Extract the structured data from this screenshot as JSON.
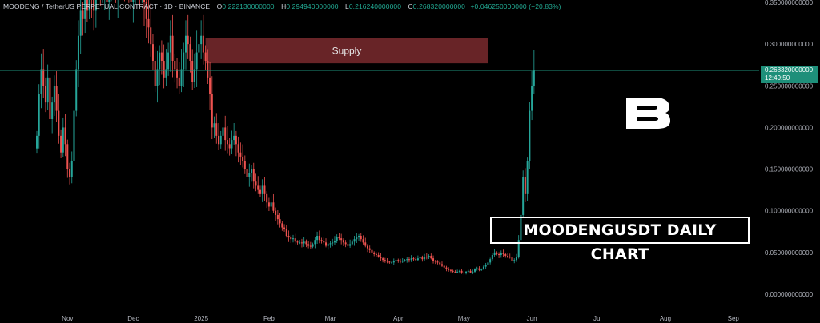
{
  "header": {
    "symbol_line": "MOODENG / TetherUS PERPETUAL CONTRACT · 1D · BINANCE",
    "open_label": "O",
    "open_value": "0.222130000000",
    "high_label": "H",
    "high_value": "0.294940000000",
    "low_label": "L",
    "low_value": "0.216240000000",
    "close_label": "C",
    "close_value": "0.268320000000",
    "change": "+0.046250000000 (+20.83%)"
  },
  "price_tag": {
    "price": "0.268320000000",
    "countdown": "12:49:50"
  },
  "title_box": "MOODENGUSDT DAILY CHART",
  "logo_icon": "b-logo-icon",
  "colors": {
    "up": "#26a69a",
    "down": "#ef5350",
    "supply_zone": "#7a2a2e",
    "last_price_line": "#1e8f7a"
  },
  "chart_data": {
    "type": "candlestick",
    "supply_zone": {
      "label": "Supply",
      "from": "2025-01-03",
      "to": "2025-05-12",
      "low": 0.277,
      "high": 0.307
    },
    "last_price": 0.26832,
    "ylim": [
      0,
      0.35
    ],
    "y_ticks": [
      "0.000000000000",
      "0.050000000000",
      "0.100000000000",
      "0.150000000000",
      "0.200000000000",
      "0.250000000000",
      "0.300000000000",
      "0.350000000000"
    ],
    "x_ticks": [
      {
        "label": "Nov",
        "date": "2024-11-01"
      },
      {
        "label": "Dec",
        "date": "2024-12-01"
      },
      {
        "label": "2025",
        "date": "2025-01-01"
      },
      {
        "label": "Feb",
        "date": "2025-02-01"
      },
      {
        "label": "Mar",
        "date": "2025-03-01"
      },
      {
        "label": "Apr",
        "date": "2025-04-01"
      },
      {
        "label": "May",
        "date": "2025-05-01"
      },
      {
        "label": "Jun",
        "date": "2025-06-01"
      },
      {
        "label": "Jul",
        "date": "2025-07-01"
      },
      {
        "label": "Aug",
        "date": "2025-08-01"
      },
      {
        "label": "Sep",
        "date": "2025-09-01"
      }
    ],
    "x_start": "2024-10-18",
    "closes": [
      0.19,
      0.24,
      0.27,
      0.25,
      0.23,
      0.26,
      0.21,
      0.23,
      0.25,
      0.22,
      0.19,
      0.17,
      0.2,
      0.18,
      0.15,
      0.14,
      0.16,
      0.22,
      0.27,
      0.31,
      0.34,
      0.33,
      0.36,
      0.34,
      0.37,
      0.36,
      0.34,
      0.37,
      0.39,
      0.36,
      0.37,
      0.38,
      0.35,
      0.37,
      0.4,
      0.38,
      0.36,
      0.39,
      0.41,
      0.39,
      0.37,
      0.38,
      0.36,
      0.35,
      0.37,
      0.39,
      0.38,
      0.36,
      0.37,
      0.35,
      0.33,
      0.32,
      0.3,
      0.28,
      0.25,
      0.27,
      0.29,
      0.28,
      0.26,
      0.27,
      0.29,
      0.31,
      0.28,
      0.27,
      0.26,
      0.25,
      0.27,
      0.29,
      0.31,
      0.3,
      0.28,
      0.255,
      0.27,
      0.29,
      0.3,
      0.31,
      0.29,
      0.28,
      0.26,
      0.24,
      0.2,
      0.205,
      0.19,
      0.18,
      0.19,
      0.2,
      0.185,
      0.18,
      0.175,
      0.185,
      0.19,
      0.18,
      0.17,
      0.165,
      0.16,
      0.15,
      0.14,
      0.145,
      0.15,
      0.135,
      0.13,
      0.125,
      0.12,
      0.13,
      0.12,
      0.11,
      0.105,
      0.11,
      0.1,
      0.095,
      0.09,
      0.085,
      0.08,
      0.078,
      0.07,
      0.068,
      0.066,
      0.067,
      0.063,
      0.062,
      0.062,
      0.061,
      0.063,
      0.06,
      0.058,
      0.057,
      0.06,
      0.065,
      0.07,
      0.065,
      0.064,
      0.062,
      0.058,
      0.06,
      0.061,
      0.062,
      0.064,
      0.069,
      0.067,
      0.065,
      0.062,
      0.06,
      0.058,
      0.06,
      0.063,
      0.066,
      0.068,
      0.07,
      0.066,
      0.062,
      0.058,
      0.055,
      0.053,
      0.05,
      0.048,
      0.047,
      0.045,
      0.043,
      0.041,
      0.04,
      0.039,
      0.038,
      0.038,
      0.04,
      0.041,
      0.04,
      0.039,
      0.04,
      0.041,
      0.042,
      0.041,
      0.043,
      0.042,
      0.041,
      0.043,
      0.044,
      0.042,
      0.045,
      0.044,
      0.046,
      0.043,
      0.04,
      0.039,
      0.038,
      0.036,
      0.034,
      0.032,
      0.03,
      0.029,
      0.028,
      0.027,
      0.026,
      0.027,
      0.028,
      0.026,
      0.025,
      0.027,
      0.028,
      0.026,
      0.027,
      0.03,
      0.031,
      0.029,
      0.03,
      0.033,
      0.035,
      0.038,
      0.042,
      0.047,
      0.05,
      0.048,
      0.047,
      0.049,
      0.048,
      0.046,
      0.045,
      0.044,
      0.04,
      0.041,
      0.045,
      0.065,
      0.095,
      0.14,
      0.12,
      0.16,
      0.22,
      0.25,
      0.26832
    ]
  }
}
